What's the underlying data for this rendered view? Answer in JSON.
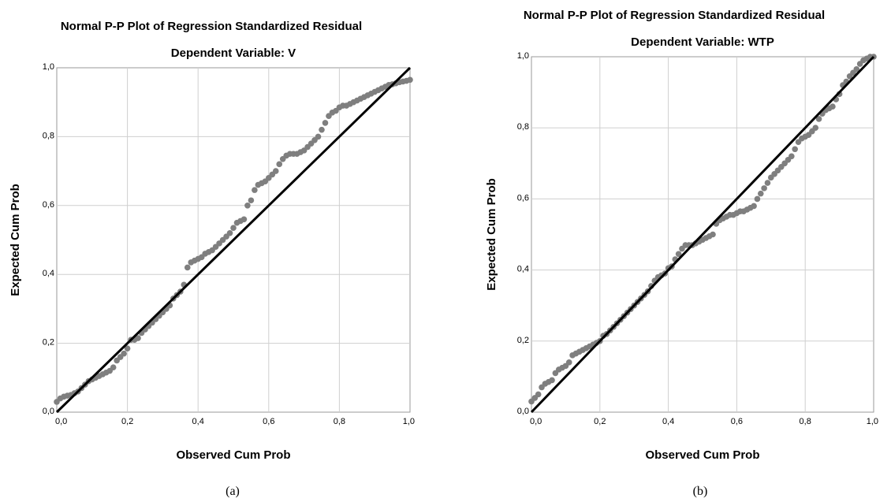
{
  "colors": {
    "points": "#7f7f7f",
    "reference_line": "#000000",
    "grid": "#cfcfcf",
    "frame": "#9a9a9a"
  },
  "chart_data": [
    {
      "type": "scatter",
      "title": "Normal P-P Plot of Regression Standardized Residual",
      "subtitle": "Dependent Variable: V",
      "xlabel": "Observed Cum Prob",
      "ylabel": "Expected Cum Prob",
      "caption": "(a)",
      "xlim": [
        0,
        1
      ],
      "ylim": [
        0,
        1
      ],
      "x_ticks": [
        "0,0",
        "0,2",
        "0,4",
        "0,6",
        "0,8",
        "1,0"
      ],
      "y_ticks": [
        "0,0",
        "0,2",
        "0,4",
        "0,6",
        "0,8",
        "1,0"
      ],
      "grid": true,
      "reference_line": {
        "x": [
          0,
          1
        ],
        "y": [
          0,
          1
        ]
      },
      "points": {
        "x": [
          0.0,
          0.01,
          0.02,
          0.03,
          0.04,
          0.05,
          0.06,
          0.07,
          0.08,
          0.09,
          0.1,
          0.11,
          0.12,
          0.13,
          0.14,
          0.15,
          0.16,
          0.17,
          0.18,
          0.19,
          0.2,
          0.21,
          0.22,
          0.23,
          0.24,
          0.25,
          0.26,
          0.27,
          0.28,
          0.29,
          0.3,
          0.31,
          0.32,
          0.33,
          0.34,
          0.35,
          0.36,
          0.37,
          0.38,
          0.39,
          0.4,
          0.41,
          0.42,
          0.43,
          0.44,
          0.45,
          0.46,
          0.47,
          0.48,
          0.49,
          0.5,
          0.51,
          0.52,
          0.53,
          0.54,
          0.55,
          0.56,
          0.57,
          0.58,
          0.59,
          0.6,
          0.61,
          0.62,
          0.63,
          0.64,
          0.65,
          0.66,
          0.67,
          0.68,
          0.69,
          0.7,
          0.71,
          0.72,
          0.73,
          0.74,
          0.75,
          0.76,
          0.77,
          0.78,
          0.79,
          0.8,
          0.81,
          0.82,
          0.83,
          0.84,
          0.85,
          0.86,
          0.87,
          0.88,
          0.89,
          0.9,
          0.91,
          0.92,
          0.93,
          0.94,
          0.95,
          0.96,
          0.97,
          0.98,
          0.99,
          1.0
        ],
        "y": [
          0.03,
          0.04,
          0.045,
          0.048,
          0.05,
          0.055,
          0.06,
          0.07,
          0.08,
          0.09,
          0.095,
          0.1,
          0.105,
          0.11,
          0.115,
          0.12,
          0.13,
          0.15,
          0.16,
          0.17,
          0.185,
          0.21,
          0.21,
          0.215,
          0.23,
          0.24,
          0.25,
          0.26,
          0.27,
          0.28,
          0.29,
          0.3,
          0.31,
          0.33,
          0.34,
          0.35,
          0.37,
          0.42,
          0.435,
          0.44,
          0.445,
          0.45,
          0.46,
          0.465,
          0.47,
          0.48,
          0.49,
          0.5,
          0.51,
          0.52,
          0.535,
          0.55,
          0.555,
          0.56,
          0.6,
          0.615,
          0.645,
          0.66,
          0.665,
          0.67,
          0.68,
          0.69,
          0.7,
          0.72,
          0.735,
          0.745,
          0.75,
          0.75,
          0.75,
          0.755,
          0.76,
          0.77,
          0.78,
          0.79,
          0.8,
          0.82,
          0.84,
          0.86,
          0.87,
          0.875,
          0.885,
          0.89,
          0.89,
          0.895,
          0.9,
          0.905,
          0.91,
          0.915,
          0.92,
          0.925,
          0.93,
          0.935,
          0.94,
          0.945,
          0.95,
          0.952,
          0.955,
          0.958,
          0.96,
          0.962,
          0.965
        ]
      }
    },
    {
      "type": "scatter",
      "title": "Normal P-P Plot of Regression Standardized Residual",
      "subtitle": "Dependent Variable: WTP",
      "xlabel": "Observed Cum Prob",
      "ylabel": "Expected Cum Prob",
      "caption": "(b)",
      "xlim": [
        0,
        1
      ],
      "ylim": [
        0,
        1
      ],
      "x_ticks": [
        "0,0",
        "0,2",
        "0,4",
        "0,6",
        "0,8",
        "1,0"
      ],
      "y_ticks": [
        "0,0",
        "0,2",
        "0,4",
        "0,6",
        "0,8",
        "1,0"
      ],
      "grid": true,
      "reference_line": {
        "x": [
          0,
          1
        ],
        "y": [
          0,
          1
        ]
      },
      "points": {
        "x": [
          0.0,
          0.01,
          0.02,
          0.03,
          0.04,
          0.05,
          0.06,
          0.07,
          0.08,
          0.09,
          0.1,
          0.11,
          0.12,
          0.13,
          0.14,
          0.15,
          0.16,
          0.17,
          0.18,
          0.19,
          0.2,
          0.21,
          0.22,
          0.23,
          0.24,
          0.25,
          0.26,
          0.27,
          0.28,
          0.29,
          0.3,
          0.31,
          0.32,
          0.33,
          0.34,
          0.35,
          0.36,
          0.37,
          0.38,
          0.39,
          0.4,
          0.41,
          0.42,
          0.43,
          0.44,
          0.45,
          0.46,
          0.47,
          0.48,
          0.49,
          0.5,
          0.51,
          0.52,
          0.53,
          0.54,
          0.55,
          0.56,
          0.57,
          0.58,
          0.59,
          0.6,
          0.61,
          0.62,
          0.63,
          0.64,
          0.65,
          0.66,
          0.67,
          0.68,
          0.69,
          0.7,
          0.71,
          0.72,
          0.73,
          0.74,
          0.75,
          0.76,
          0.77,
          0.78,
          0.79,
          0.8,
          0.81,
          0.82,
          0.83,
          0.84,
          0.85,
          0.86,
          0.87,
          0.88,
          0.89,
          0.9,
          0.91,
          0.92,
          0.93,
          0.94,
          0.95,
          0.96,
          0.97,
          0.98,
          0.99,
          1.0
        ],
        "y": [
          0.03,
          0.04,
          0.05,
          0.07,
          0.08,
          0.085,
          0.09,
          0.11,
          0.12,
          0.125,
          0.13,
          0.14,
          0.16,
          0.165,
          0.17,
          0.175,
          0.18,
          0.185,
          0.19,
          0.195,
          0.2,
          0.215,
          0.22,
          0.23,
          0.24,
          0.25,
          0.26,
          0.27,
          0.28,
          0.29,
          0.3,
          0.31,
          0.32,
          0.33,
          0.34,
          0.355,
          0.37,
          0.38,
          0.385,
          0.39,
          0.405,
          0.41,
          0.43,
          0.445,
          0.46,
          0.47,
          0.47,
          0.47,
          0.475,
          0.48,
          0.485,
          0.49,
          0.495,
          0.5,
          0.53,
          0.54,
          0.545,
          0.55,
          0.555,
          0.555,
          0.56,
          0.565,
          0.565,
          0.57,
          0.575,
          0.58,
          0.6,
          0.615,
          0.63,
          0.645,
          0.66,
          0.67,
          0.68,
          0.69,
          0.7,
          0.71,
          0.72,
          0.74,
          0.76,
          0.77,
          0.775,
          0.78,
          0.79,
          0.8,
          0.825,
          0.84,
          0.85,
          0.855,
          0.86,
          0.88,
          0.895,
          0.92,
          0.93,
          0.945,
          0.955,
          0.965,
          0.98,
          0.99,
          0.995,
          1.0,
          1.0
        ]
      }
    }
  ]
}
